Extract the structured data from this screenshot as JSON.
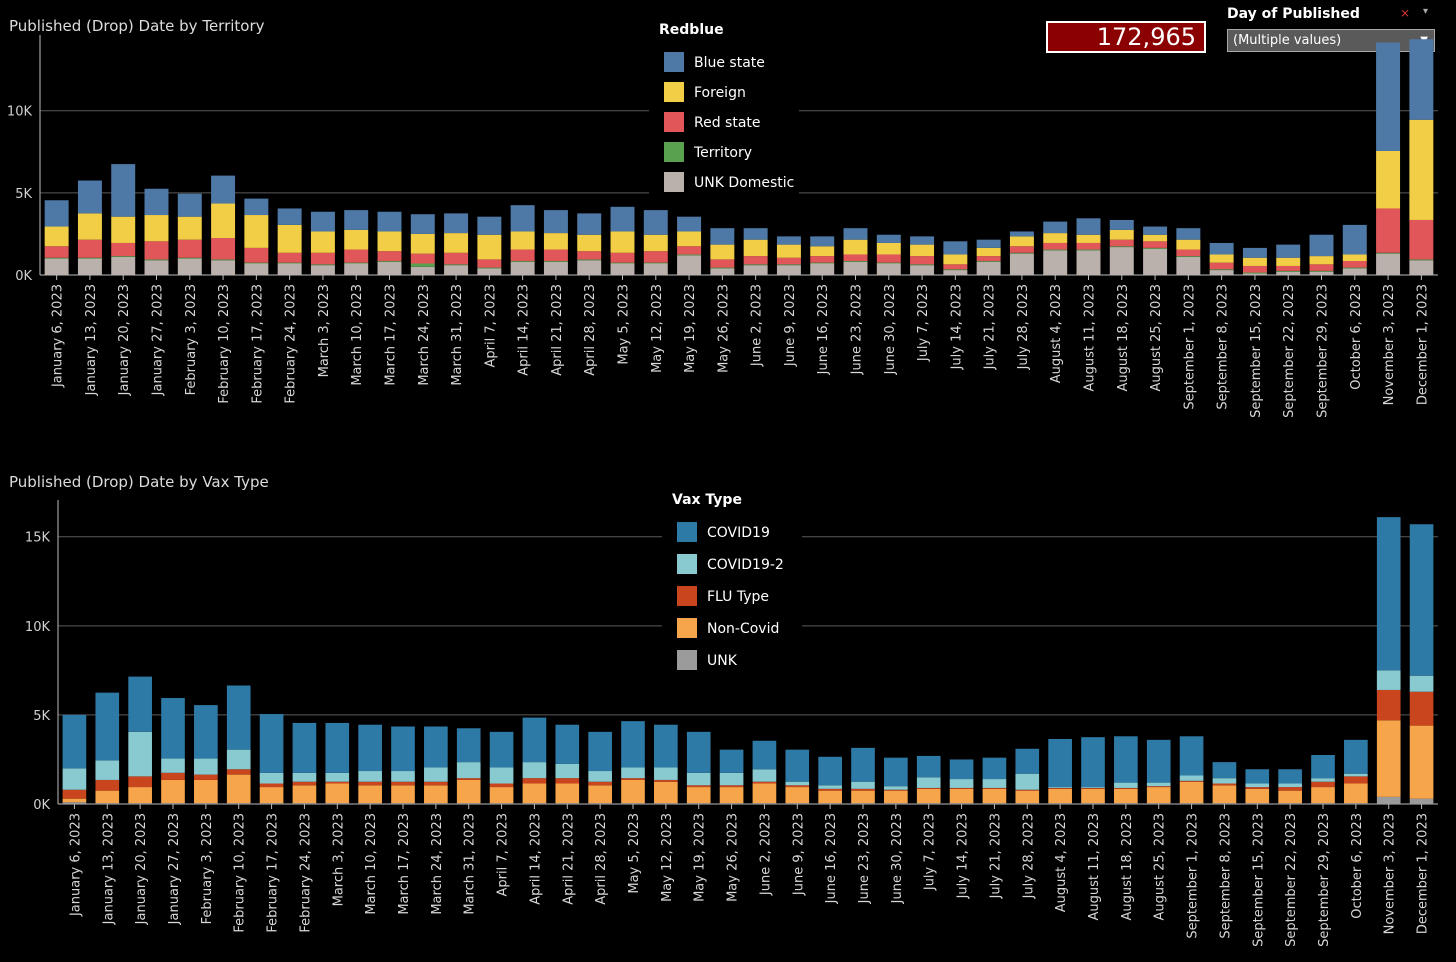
{
  "kpi": {
    "value": "172,965"
  },
  "filter": {
    "title": "Day of Published",
    "selected": "(Multiple values)"
  },
  "colors": {
    "Blue state": "#4e79a7",
    "Foreign": "#f1ce46",
    "Red state": "#e15759",
    "Territory": "#59a14f",
    "UNK Domestic": "#bab0ac",
    "COVID19": "#2e7aa6",
    "COVID19-2": "#89c9d0",
    "FLU Type": "#c8451d",
    "Non-Covid": "#f7a54a",
    "UNK": "#9b9b9b"
  },
  "chart_data": [
    {
      "type": "bar",
      "stacked": true,
      "title": "Published (Drop) Date by Territory",
      "legend_title": "Redblue",
      "ylim": [
        0,
        14000
      ],
      "yticks": [
        "0K",
        "5K",
        "10K"
      ],
      "categories": [
        "January 6, 2023",
        "January 13, 2023",
        "January 20, 2023",
        "January 27, 2023",
        "February 3, 2023",
        "February 10, 2023",
        "February 17, 2023",
        "February 24, 2023",
        "March 3, 2023",
        "March 10, 2023",
        "March 17, 2023",
        "March 24, 2023",
        "March 31, 2023",
        "April 7, 2023",
        "April 14, 2023",
        "April 21, 2023",
        "April 28, 2023",
        "May 5, 2023",
        "May 12, 2023",
        "May 19, 2023",
        "May 26, 2023",
        "June 2, 2023",
        "June 9, 2023",
        "June 16, 2023",
        "June 23, 2023",
        "June 30, 2023",
        "July 7, 2023",
        "July 14, 2023",
        "July 21, 2023",
        "July 28, 2023",
        "August 4, 2023",
        "August 11, 2023",
        "August 18, 2023",
        "August 25, 2023",
        "September 1, 2023",
        "September 8, 2023",
        "September 15, 2023",
        "September 22, 2023",
        "September 29, 2023",
        "October 6, 2023",
        "November 3, 2023",
        "December 1, 2023"
      ],
      "series": [
        {
          "name": "UNK Domestic",
          "values": [
            1000,
            1000,
            1100,
            900,
            1000,
            900,
            700,
            700,
            600,
            700,
            800,
            500,
            600,
            400,
            800,
            800,
            900,
            700,
            700,
            1200,
            400,
            600,
            600,
            700,
            800,
            700,
            600,
            300,
            800,
            1300,
            1500,
            1500,
            1700,
            1600,
            1100,
            300,
            100,
            200,
            200,
            400,
            1300,
            900
          ]
        },
        {
          "name": "Territory",
          "values": [
            50,
            50,
            50,
            50,
            50,
            50,
            50,
            50,
            50,
            50,
            50,
            200,
            50,
            50,
            50,
            50,
            50,
            50,
            50,
            50,
            50,
            50,
            50,
            50,
            50,
            50,
            50,
            50,
            50,
            50,
            50,
            50,
            50,
            50,
            50,
            50,
            50,
            50,
            50,
            50,
            50,
            50
          ]
        },
        {
          "name": "Red state",
          "values": [
            700,
            1100,
            800,
            1100,
            1100,
            1300,
            900,
            600,
            700,
            800,
            600,
            600,
            700,
            500,
            700,
            700,
            500,
            600,
            700,
            500,
            500,
            500,
            400,
            400,
            400,
            500,
            500,
            300,
            300,
            400,
            400,
            400,
            400,
            400,
            400,
            400,
            400,
            300,
            400,
            400,
            2700,
            2400
          ]
        },
        {
          "name": "Foreign",
          "values": [
            1200,
            1600,
            1600,
            1600,
            1400,
            2100,
            2000,
            1700,
            1300,
            1200,
            1200,
            1200,
            1200,
            1500,
            1100,
            1000,
            1000,
            1300,
            1000,
            900,
            900,
            1000,
            800,
            600,
            900,
            700,
            700,
            600,
            500,
            600,
            600,
            500,
            600,
            400,
            600,
            500,
            500,
            500,
            500,
            400,
            3500,
            6100
          ]
        },
        {
          "name": "Blue state",
          "values": [
            1600,
            2000,
            3200,
            1600,
            1400,
            1700,
            1000,
            1000,
            1200,
            1200,
            1200,
            1200,
            1200,
            1100,
            1600,
            1400,
            1300,
            1500,
            1500,
            900,
            1000,
            700,
            500,
            600,
            700,
            500,
            500,
            800,
            500,
            300,
            700,
            1000,
            600,
            500,
            700,
            700,
            600,
            800,
            1300,
            1800,
            6600,
            4900
          ]
        }
      ]
    },
    {
      "type": "bar",
      "stacked": true,
      "title": "Published (Drop) Date by Vax Type",
      "legend_title": "Vax Type",
      "ylim": [
        0,
        16500
      ],
      "yticks": [
        "0K",
        "5K",
        "10K",
        "15K"
      ],
      "categories": [
        "January 6, 2023",
        "January 13, 2023",
        "January 20, 2023",
        "January 27, 2023",
        "February 3, 2023",
        "February 10, 2023",
        "February 17, 2023",
        "February 24, 2023",
        "March 3, 2023",
        "March 10, 2023",
        "March 17, 2023",
        "March 24, 2023",
        "March 31, 2023",
        "April 7, 2023",
        "April 14, 2023",
        "April 21, 2023",
        "April 28, 2023",
        "May 5, 2023",
        "May 12, 2023",
        "May 19, 2023",
        "May 26, 2023",
        "June 2, 2023",
        "June 9, 2023",
        "June 16, 2023",
        "June 23, 2023",
        "June 30, 2023",
        "July 7, 2023",
        "July 14, 2023",
        "July 21, 2023",
        "July 28, 2023",
        "August 4, 2023",
        "August 11, 2023",
        "August 18, 2023",
        "August 25, 2023",
        "September 1, 2023",
        "September 8, 2023",
        "September 15, 2023",
        "September 22, 2023",
        "September 29, 2023",
        "October 6, 2023",
        "November 3, 2023",
        "December 1, 2023"
      ],
      "series": [
        {
          "name": "UNK",
          "values": [
            100,
            50,
            50,
            50,
            50,
            50,
            50,
            50,
            50,
            50,
            50,
            50,
            50,
            50,
            50,
            50,
            50,
            50,
            50,
            50,
            50,
            50,
            50,
            50,
            50,
            50,
            50,
            50,
            50,
            50,
            50,
            50,
            50,
            50,
            50,
            50,
            50,
            50,
            50,
            50,
            400,
            300
          ]
        },
        {
          "name": "Non-Covid",
          "values": [
            200,
            700,
            900,
            1300,
            1300,
            1600,
            900,
            1000,
            1100,
            1000,
            1000,
            1000,
            1300,
            900,
            1100,
            1100,
            1000,
            1300,
            1200,
            900,
            900,
            1100,
            900,
            700,
            700,
            700,
            800,
            800,
            800,
            700,
            800,
            800,
            800,
            900,
            1200,
            1000,
            800,
            700,
            900,
            1100,
            4300,
            4100
          ]
        },
        {
          "name": "FLU Type",
          "values": [
            500,
            600,
            600,
            400,
            300,
            300,
            200,
            200,
            100,
            200,
            200,
            200,
            100,
            200,
            300,
            300,
            200,
            100,
            100,
            100,
            100,
            100,
            100,
            100,
            100,
            50,
            50,
            50,
            50,
            50,
            50,
            50,
            50,
            50,
            50,
            100,
            100,
            200,
            300,
            400,
            1700,
            1900
          ]
        },
        {
          "name": "COVID19-2",
          "values": [
            1200,
            1100,
            2500,
            800,
            900,
            1100,
            600,
            500,
            500,
            600,
            600,
            800,
            900,
            900,
            900,
            800,
            600,
            600,
            700,
            700,
            700,
            700,
            200,
            200,
            400,
            200,
            600,
            500,
            500,
            900,
            50,
            50,
            300,
            200,
            300,
            300,
            200,
            200,
            200,
            150,
            1100,
            900
          ]
        },
        {
          "name": "COVID19",
          "values": [
            3000,
            3800,
            3100,
            3400,
            3000,
            3600,
            3300,
            2800,
            2800,
            2600,
            2500,
            2300,
            1900,
            2000,
            2500,
            2200,
            2200,
            2600,
            2400,
            2300,
            1300,
            1600,
            1800,
            1600,
            1900,
            1600,
            1200,
            1100,
            1200,
            1400,
            2700,
            2800,
            2600,
            2400,
            2200,
            900,
            800,
            800,
            1300,
            1900,
            8600,
            8500
          ]
        }
      ]
    }
  ]
}
